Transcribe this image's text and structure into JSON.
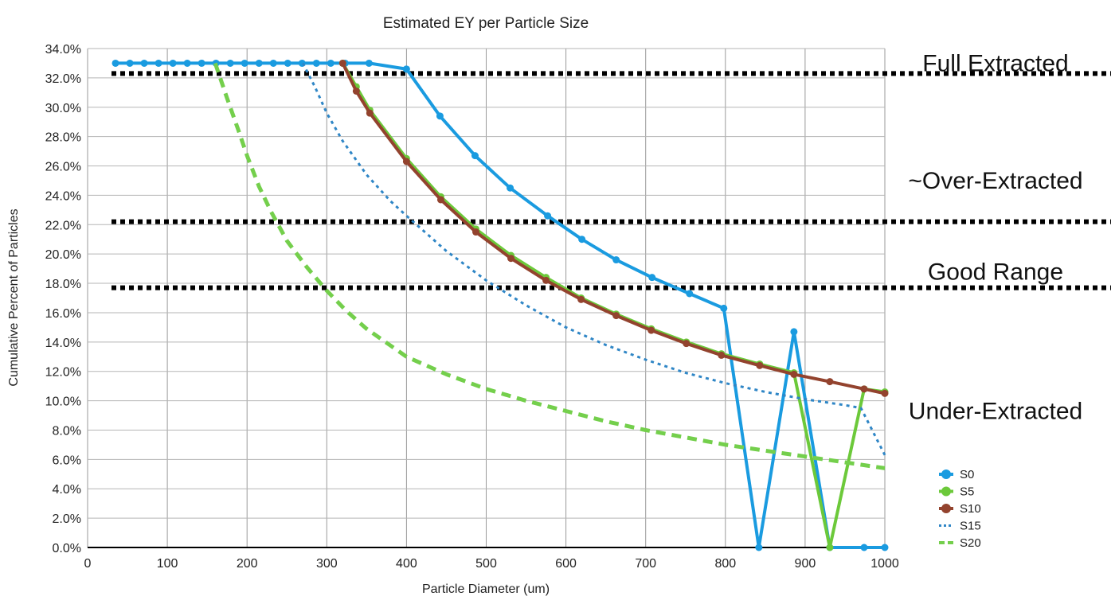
{
  "chart_data": {
    "type": "line",
    "title": "Estimated EY per Particle Size",
    "xlabel": "Particle Diameter (um)",
    "ylabel": "Cumulative Percent of Particles",
    "xlim": [
      0,
      1000
    ],
    "ylim": [
      0,
      34
    ],
    "x_ticks": [
      0,
      100,
      200,
      300,
      400,
      500,
      600,
      700,
      800,
      900,
      1000
    ],
    "y_ticks": [
      0,
      2,
      4,
      6,
      8,
      10,
      12,
      14,
      16,
      18,
      20,
      22,
      24,
      26,
      28,
      30,
      32,
      34
    ],
    "y_tick_format": "percent_1dp",
    "grid": true,
    "legend_position": "bottom-right",
    "reference_lines": [
      {
        "y": 32.3,
        "style": "dotted",
        "color": "#000000"
      },
      {
        "y": 22.2,
        "style": "dotted",
        "color": "#000000"
      },
      {
        "y": 17.7,
        "style": "dotted",
        "color": "#000000"
      }
    ],
    "annotations": [
      {
        "text": "Full Extracted",
        "y": 33.0
      },
      {
        "text": "~Over-Extracted",
        "y": 25.0
      },
      {
        "text": "Good Range",
        "y": 18.8
      },
      {
        "text": "Under-Extracted",
        "y": 9.3
      }
    ],
    "series": [
      {
        "name": "S0",
        "color": "#1a9be0",
        "style": "solid-marker",
        "x": [
          35,
          53,
          71,
          89,
          107,
          125,
          143,
          161,
          179,
          197,
          215,
          233,
          251,
          269,
          287,
          305,
          323,
          353,
          400,
          442,
          486,
          530,
          577,
          620,
          663,
          708,
          755,
          798,
          842,
          886,
          931,
          974,
          1000
        ],
        "y": [
          33.0,
          33.0,
          33.0,
          33.0,
          33.0,
          33.0,
          33.0,
          33.0,
          33.0,
          33.0,
          33.0,
          33.0,
          33.0,
          33.0,
          33.0,
          33.0,
          33.0,
          33.0,
          32.6,
          29.4,
          26.7,
          24.5,
          22.6,
          21.0,
          19.6,
          18.4,
          17.3,
          16.3,
          0.0,
          14.7,
          0.0,
          0.0,
          0.0
        ]
      },
      {
        "name": "S5",
        "color": "#6cc93a",
        "style": "solid-marker",
        "x": [
          320,
          337,
          354,
          400,
          443,
          487,
          531,
          575,
          619,
          663,
          707,
          751,
          795,
          843,
          886,
          931,
          974,
          1000
        ],
        "y": [
          33.0,
          31.4,
          29.8,
          26.5,
          23.9,
          21.7,
          19.9,
          18.4,
          17.0,
          15.9,
          14.9,
          14.0,
          13.2,
          12.5,
          11.9,
          0.0,
          10.8,
          10.6
        ]
      },
      {
        "name": "S10",
        "color": "#93432e",
        "style": "solid-marker",
        "x": [
          320,
          337,
          354,
          400,
          443,
          487,
          531,
          575,
          619,
          663,
          707,
          751,
          795,
          843,
          886,
          931,
          974,
          1000
        ],
        "y": [
          33.0,
          31.1,
          29.6,
          26.3,
          23.7,
          21.5,
          19.7,
          18.2,
          16.9,
          15.8,
          14.8,
          13.9,
          13.1,
          12.4,
          11.8,
          11.3,
          10.8,
          10.5
        ]
      },
      {
        "name": "S15",
        "color": "#2f86c6",
        "style": "dotted",
        "x": [
          270,
          285,
          300,
          320,
          350,
          380,
          400,
          450,
          500,
          550,
          600,
          650,
          700,
          750,
          800,
          850,
          900,
          950,
          970,
          1000
        ],
        "y": [
          33.0,
          31.4,
          29.6,
          27.7,
          25.4,
          23.6,
          22.6,
          20.2,
          18.2,
          16.5,
          15.0,
          13.8,
          12.8,
          11.9,
          11.2,
          10.6,
          10.1,
          9.7,
          9.5,
          6.3
        ]
      },
      {
        "name": "S20",
        "color": "#74cf4c",
        "style": "dashed",
        "x": [
          160,
          175,
          190,
          200,
          215,
          230,
          250,
          275,
          300,
          325,
          350,
          400,
          450,
          500,
          550,
          600,
          650,
          700,
          750,
          800,
          850,
          900,
          950,
          1000
        ],
        "y": [
          33.0,
          30.6,
          28.3,
          26.7,
          24.6,
          22.9,
          20.9,
          19.1,
          17.5,
          16.1,
          14.9,
          13.0,
          11.8,
          10.8,
          10.0,
          9.3,
          8.6,
          8.0,
          7.5,
          7.0,
          6.6,
          6.2,
          5.8,
          5.4
        ]
      }
    ]
  }
}
